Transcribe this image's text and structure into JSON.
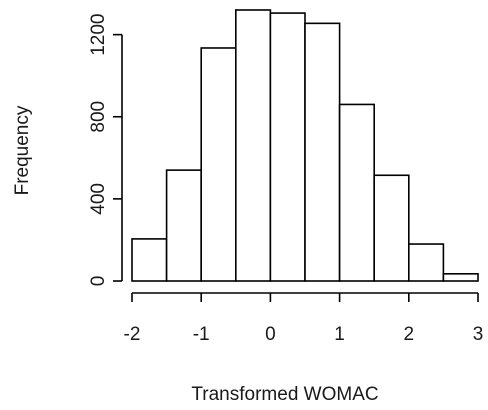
{
  "chart_data": {
    "type": "bar",
    "subtype": "histogram",
    "title": "",
    "xlabel": "Transformed WOMAC",
    "ylabel": "Frequency",
    "bin_edges": [
      -2,
      -1.5,
      -1,
      -0.5,
      0,
      0.5,
      1,
      1.5,
      2,
      2.5,
      3
    ],
    "values": [
      205,
      540,
      1135,
      1320,
      1305,
      1255,
      860,
      515,
      180,
      35
    ],
    "xlim": [
      -2,
      3
    ],
    "ylim": [
      0,
      1320
    ],
    "x_ticks": [
      -2,
      -1,
      0,
      1,
      2,
      3
    ],
    "x_tick_labels": [
      "-2",
      "-1",
      "0",
      "1",
      "2",
      "3"
    ],
    "y_ticks": [
      0,
      400,
      800,
      1200
    ],
    "y_tick_labels": [
      "0",
      "400",
      "800",
      "1200"
    ],
    "grid": false,
    "legend": "none",
    "bar_fill": "#ffffff",
    "bar_stroke": "#000000"
  }
}
